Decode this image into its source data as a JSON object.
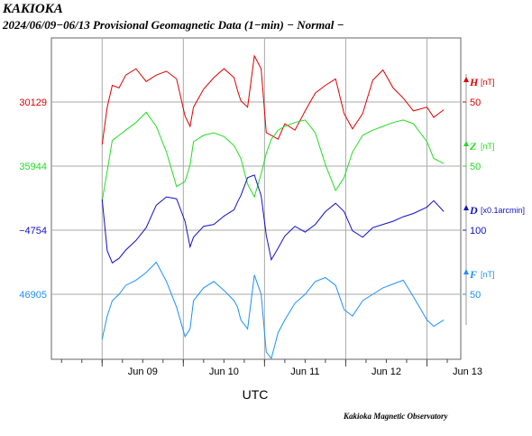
{
  "header": {
    "station": "KAKIOKA",
    "subtitle": "2024/06/09−06/13  Provisional Geomagnetic Data (1−min)  − Normal −"
  },
  "footer": {
    "credit": "Kakioka Magnetic Observatory"
  },
  "chart_data": {
    "type": "line",
    "x_axis": {
      "label": "UTC",
      "start": "2024-06-08T09:00",
      "end": "2024-06-13T10:00",
      "tick_labels": [
        "Jun 09",
        "Jun 10",
        "Jun 11",
        "Jun 12",
        "Jun 13"
      ],
      "tick_dates": [
        "2024-06-09T12:00",
        "2024-06-10T12:00",
        "2024-06-11T12:00",
        "2024-06-12T12:00",
        "2024-06-13T12:00"
      ],
      "day_boundaries": [
        "2024-06-09T00:00",
        "2024-06-10T00:00",
        "2024-06-11T00:00",
        "2024-06-12T00:00",
        "2024-06-13T00:00"
      ]
    },
    "grid": true,
    "series": [
      {
        "name": "H",
        "unit": "[nT]",
        "color": "#e00000",
        "left_label": "30129",
        "scale_label": "50",
        "times": [
          "2024-06-09T00:00",
          "2024-06-09T01:30",
          "2024-06-09T03:00",
          "2024-06-09T05:00",
          "2024-06-09T07:00",
          "2024-06-09T10:00",
          "2024-06-09T13:00",
          "2024-06-09T16:00",
          "2024-06-09T19:00",
          "2024-06-09T22:00",
          "2024-06-10T00:30",
          "2024-06-10T02:00",
          "2024-06-10T03:00",
          "2024-06-10T06:00",
          "2024-06-10T09:00",
          "2024-06-10T12:00",
          "2024-06-10T15:00",
          "2024-06-10T16:00",
          "2024-06-10T17:00",
          "2024-06-10T19:00",
          "2024-06-10T21:00",
          "2024-06-10T23:00",
          "2024-06-11T00:30",
          "2024-06-11T02:00",
          "2024-06-11T04:00",
          "2024-06-11T06:00",
          "2024-06-11T09:00",
          "2024-06-11T12:00",
          "2024-06-11T15:00",
          "2024-06-11T18:00",
          "2024-06-11T21:00",
          "2024-06-11T23:30",
          "2024-06-12T02:00",
          "2024-06-12T05:00",
          "2024-06-12T08:00",
          "2024-06-12T11:00",
          "2024-06-12T14:00",
          "2024-06-12T17:00",
          "2024-06-12T20:00",
          "2024-06-13T00:00",
          "2024-06-13T02:00",
          "2024-06-13T05:00"
        ],
        "values": [
          30096,
          30125,
          30142,
          30140,
          30150,
          30155,
          30145,
          30150,
          30153,
          30147,
          30118,
          30110,
          30125,
          30139,
          30148,
          30155,
          30148,
          30138,
          30130,
          30125,
          30165,
          30155,
          30105,
          30103,
          30100,
          30112,
          30107,
          30122,
          30136,
          30142,
          30147,
          30120,
          30108,
          30120,
          30146,
          30154,
          30140,
          30132,
          30122,
          30125,
          30117,
          30123
        ]
      },
      {
        "name": "Z",
        "unit": "[nT]",
        "color": "#22dd22",
        "left_label": "35944",
        "scale_label": "50",
        "times": [
          "2024-06-09T00:00",
          "2024-06-09T01:30",
          "2024-06-09T03:00",
          "2024-06-09T05:00",
          "2024-06-09T07:00",
          "2024-06-09T10:00",
          "2024-06-09T13:00",
          "2024-06-09T16:00",
          "2024-06-09T19:00",
          "2024-06-09T22:00",
          "2024-06-10T00:30",
          "2024-06-10T02:00",
          "2024-06-10T03:00",
          "2024-06-10T06:00",
          "2024-06-10T09:00",
          "2024-06-10T12:00",
          "2024-06-10T15:00",
          "2024-06-10T16:00",
          "2024-06-10T17:00",
          "2024-06-10T19:00",
          "2024-06-10T21:00",
          "2024-06-10T23:00",
          "2024-06-11T00:30",
          "2024-06-11T02:00",
          "2024-06-11T04:00",
          "2024-06-11T06:00",
          "2024-06-11T09:00",
          "2024-06-11T12:00",
          "2024-06-11T15:00",
          "2024-06-11T18:00",
          "2024-06-11T21:00",
          "2024-06-11T23:30",
          "2024-06-12T02:00",
          "2024-06-12T05:00",
          "2024-06-12T08:00",
          "2024-06-12T11:00",
          "2024-06-12T14:00",
          "2024-06-12T17:00",
          "2024-06-12T20:00",
          "2024-06-13T00:00",
          "2024-06-13T02:00",
          "2024-06-13T05:00"
        ],
        "values": [
          35917,
          35940,
          35964,
          35968,
          35972,
          35978,
          35986,
          35975,
          35955,
          35928,
          35932,
          35945,
          35963,
          35968,
          35970,
          35967,
          35960,
          35955,
          35950,
          35930,
          35920,
          35938,
          35954,
          35965,
          35972,
          35975,
          35978,
          35980,
          35970,
          35945,
          35925,
          35935,
          35955,
          35968,
          35972,
          35975,
          35978,
          35980,
          35977,
          35963,
          35950,
          35946
        ]
      },
      {
        "name": "D",
        "unit": "[x0.1arcmin]",
        "color": "#1010cc",
        "left_label": "−4754",
        "scale_label": "100",
        "times": [
          "2024-06-09T00:00",
          "2024-06-09T01:30",
          "2024-06-09T03:00",
          "2024-06-09T05:00",
          "2024-06-09T07:00",
          "2024-06-09T10:00",
          "2024-06-09T13:00",
          "2024-06-09T16:00",
          "2024-06-09T19:00",
          "2024-06-09T22:00",
          "2024-06-10T00:30",
          "2024-06-10T02:00",
          "2024-06-10T03:00",
          "2024-06-10T06:00",
          "2024-06-10T09:00",
          "2024-06-10T12:00",
          "2024-06-10T15:00",
          "2024-06-10T16:00",
          "2024-06-10T17:00",
          "2024-06-10T19:00",
          "2024-06-10T21:00",
          "2024-06-10T23:00",
          "2024-06-11T00:30",
          "2024-06-11T02:00",
          "2024-06-11T04:00",
          "2024-06-11T06:00",
          "2024-06-11T09:00",
          "2024-06-11T12:00",
          "2024-06-11T15:00",
          "2024-06-11T18:00",
          "2024-06-11T21:00",
          "2024-06-11T23:30",
          "2024-06-12T02:00",
          "2024-06-12T05:00",
          "2024-06-12T08:00",
          "2024-06-12T11:00",
          "2024-06-12T14:00",
          "2024-06-12T17:00",
          "2024-06-12T20:00",
          "2024-06-13T00:00",
          "2024-06-13T02:00",
          "2024-06-13T05:00"
        ],
        "values": [
          -4706,
          -4786,
          -4805,
          -4798,
          -4785,
          -4770,
          -4750,
          -4715,
          -4702,
          -4705,
          -4740,
          -4780,
          -4765,
          -4748,
          -4745,
          -4732,
          -4722,
          -4710,
          -4700,
          -4672,
          -4668,
          -4700,
          -4762,
          -4800,
          -4782,
          -4763,
          -4748,
          -4757,
          -4745,
          -4725,
          -4712,
          -4725,
          -4755,
          -4765,
          -4750,
          -4745,
          -4740,
          -4733,
          -4728,
          -4718,
          -4708,
          -4725
        ]
      },
      {
        "name": "F",
        "unit": "[nT]",
        "color": "#1e90ff",
        "left_label": "46905",
        "scale_label": "50",
        "times": [
          "2024-06-09T00:00",
          "2024-06-09T01:30",
          "2024-06-09T03:00",
          "2024-06-09T05:00",
          "2024-06-09T07:00",
          "2024-06-09T10:00",
          "2024-06-09T13:00",
          "2024-06-09T16:00",
          "2024-06-09T19:00",
          "2024-06-09T22:00",
          "2024-06-10T00:30",
          "2024-06-10T02:00",
          "2024-06-10T03:00",
          "2024-06-10T06:00",
          "2024-06-10T09:00",
          "2024-06-10T12:00",
          "2024-06-10T15:00",
          "2024-06-10T16:00",
          "2024-06-10T17:00",
          "2024-06-10T19:00",
          "2024-06-10T21:00",
          "2024-06-10T23:00",
          "2024-06-11T00:30",
          "2024-06-11T02:00",
          "2024-06-11T04:00",
          "2024-06-11T06:00",
          "2024-06-11T09:00",
          "2024-06-11T12:00",
          "2024-06-11T15:00",
          "2024-06-11T18:00",
          "2024-06-11T21:00",
          "2024-06-11T23:30",
          "2024-06-12T02:00",
          "2024-06-12T05:00",
          "2024-06-12T08:00",
          "2024-06-12T11:00",
          "2024-06-12T14:00",
          "2024-06-12T17:00",
          "2024-06-12T20:00",
          "2024-06-13T00:00",
          "2024-06-13T02:00",
          "2024-06-13T05:00"
        ],
        "values": [
          46870,
          46888,
          46900,
          46905,
          46912,
          46916,
          46922,
          46930,
          46915,
          46895,
          46872,
          46878,
          46900,
          46910,
          46915,
          46908,
          46900,
          46895,
          46885,
          46878,
          46920,
          46905,
          46860,
          46855,
          46875,
          46885,
          46898,
          46905,
          46915,
          46918,
          46912,
          46893,
          46888,
          46900,
          46905,
          46910,
          46913,
          46916,
          46903,
          46885,
          46880,
          46885
        ]
      }
    ]
  }
}
